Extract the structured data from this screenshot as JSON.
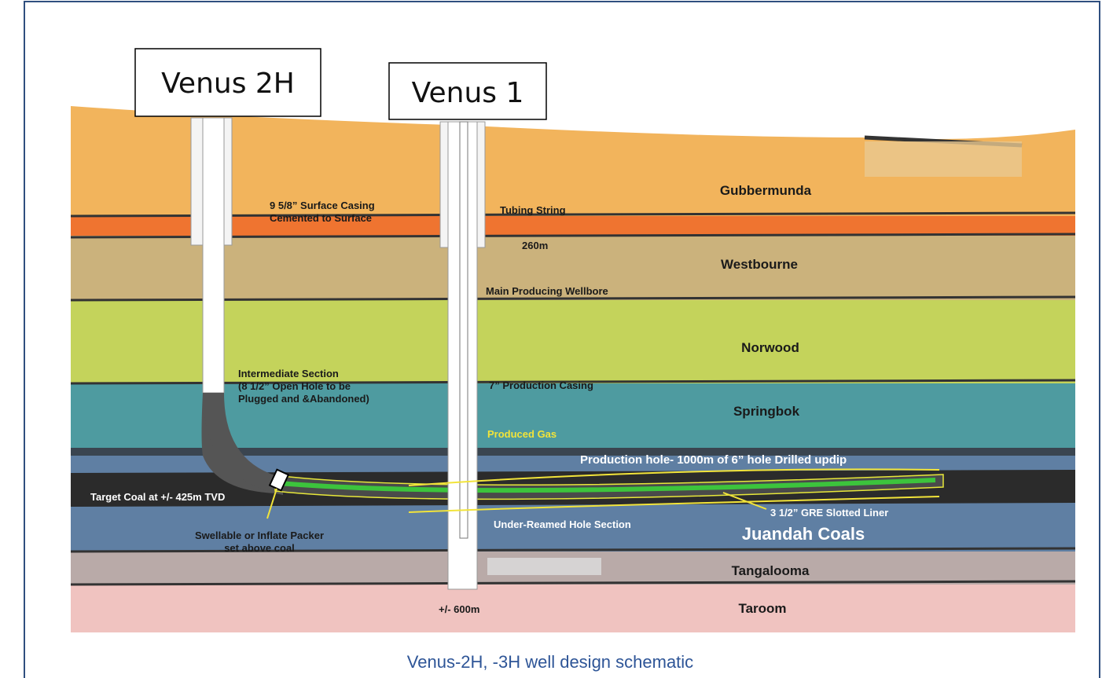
{
  "wells": [
    "Venus 2H",
    "Venus 1"
  ],
  "layers": [
    "Gubbermunda",
    "Westbourne",
    "Norwood",
    "Springbok",
    "Juandah Coals",
    "Tangalooma",
    "Taroom"
  ],
  "annotations": {
    "surface_casing": [
      "9 5/8” Surface Casing",
      "Cemented to Surface"
    ],
    "tubing_string": "Tubing String",
    "casing_depth": "260m",
    "main_wellbore": "Main Producing Wellbore",
    "intermediate_section": [
      "Intermediate Section",
      "(8 1/2” Open Hole to be",
      "Plugged and &Abandoned)"
    ],
    "production_casing": "7” Production Casing",
    "produced_gas": "Produced Gas",
    "production_hole": "Production hole- 1000m of 6” hole Drilled updip",
    "target_coal": "Target Coal at +/- 425m TVD",
    "packer": [
      "Swellable or Inflate Packer",
      "set above coal"
    ],
    "under_reamed": "Under-Reamed Hole Section",
    "liner": "3 1/2” GRE Slotted Liner",
    "total_depth": "+/- 600m"
  },
  "caption": "Venus-2H, -3H well design schematic"
}
